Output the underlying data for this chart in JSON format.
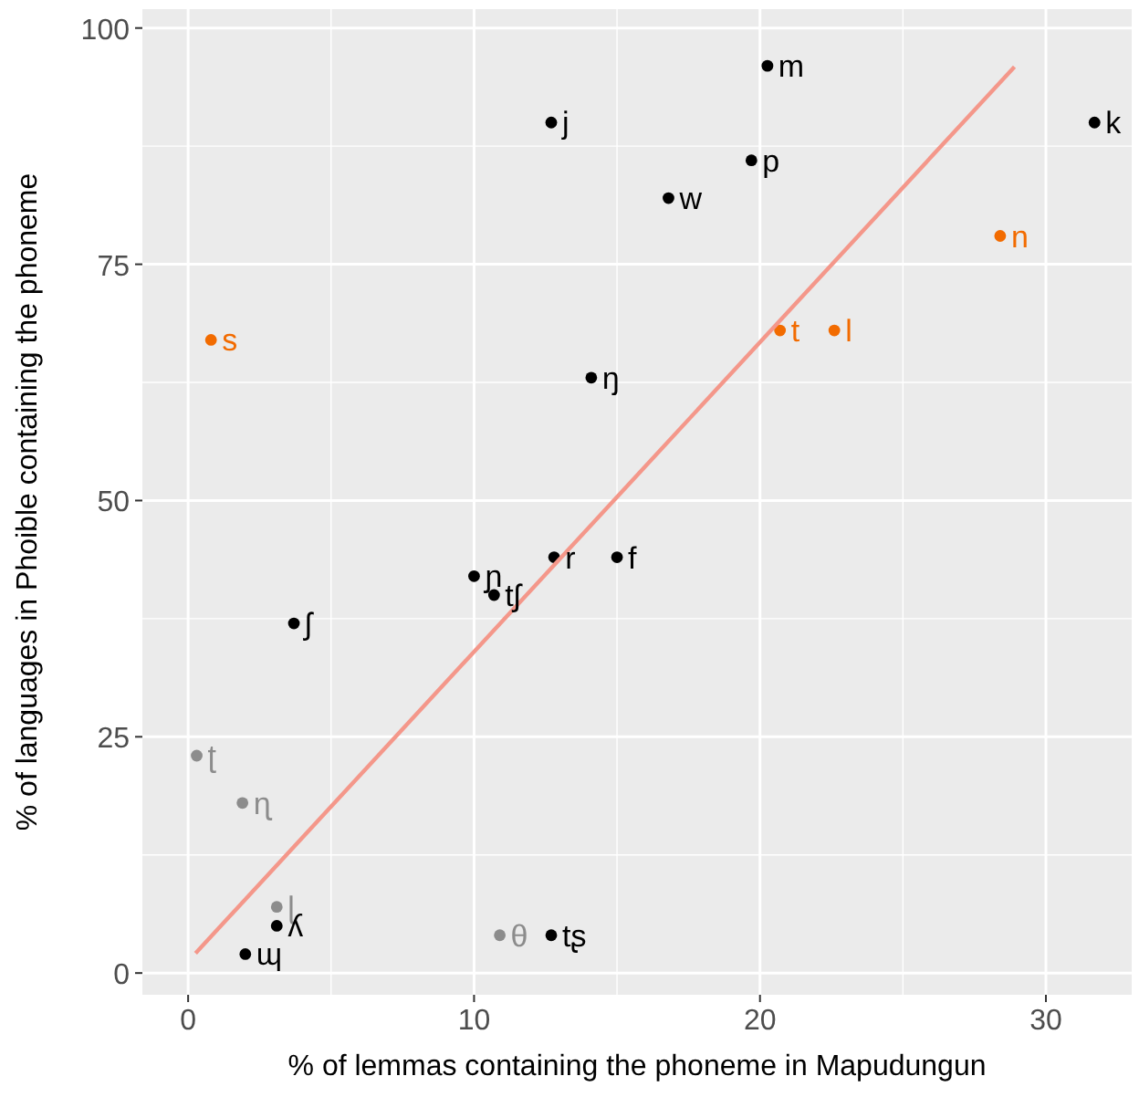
{
  "chart_data": {
    "type": "scatter",
    "xlabel": "% of lemmas containing the phoneme in Mapudungun",
    "ylabel": "% of languages in Phoible containing the phoneme",
    "xlim": [
      -1.6,
      33
    ],
    "ylim": [
      -2.3,
      102
    ],
    "xticks": [
      0,
      10,
      20,
      30
    ],
    "yticks": [
      0,
      25,
      50,
      75,
      100
    ],
    "grid": true,
    "marker": "circle",
    "series": [
      {
        "color": "#000000",
        "x": [
          20.26,
          12.7,
          31.7,
          19.7,
          16.8,
          14.1,
          10.0,
          12.8,
          15.0,
          10.7,
          3.7,
          3.1,
          2.0,
          12.7
        ],
        "values": [
          96,
          90,
          90,
          86,
          82,
          63,
          42,
          44,
          44,
          40,
          37,
          5,
          2,
          4
        ]
      },
      {
        "color": "#f26b00",
        "x": [
          28.4,
          0.8,
          20.7,
          22.6
        ],
        "values": [
          78,
          67,
          68,
          68
        ]
      },
      {
        "color": "#8c8c8c",
        "x": [
          0.3,
          1.9,
          3.1,
          10.9
        ],
        "values": [
          23,
          18,
          7,
          4
        ]
      },
      {
        "type": "line",
        "color": "#f4978a",
        "x": [
          0.26,
          28.9
        ],
        "values": [
          2.1,
          95.9
        ],
        "marker": "none"
      }
    ],
    "annotations": [
      {
        "text": "m",
        "x": 20.26,
        "y": 96
      },
      {
        "text": "j",
        "x": 12.7,
        "y": 90
      },
      {
        "text": "k",
        "x": 31.7,
        "y": 90
      },
      {
        "text": "p",
        "x": 19.7,
        "y": 86
      },
      {
        "text": "w",
        "x": 16.8,
        "y": 82
      },
      {
        "text": "n",
        "x": 28.4,
        "y": 78
      },
      {
        "text": "s",
        "x": 0.8,
        "y": 67
      },
      {
        "text": "t",
        "x": 20.7,
        "y": 68
      },
      {
        "text": "l",
        "x": 22.6,
        "y": 68
      },
      {
        "text": "ŋ",
        "x": 14.1,
        "y": 63
      },
      {
        "text": "ɲ",
        "x": 10.0,
        "y": 42
      },
      {
        "text": "r",
        "x": 12.8,
        "y": 44
      },
      {
        "text": "f",
        "x": 15.0,
        "y": 44
      },
      {
        "text": "tʃ",
        "x": 10.7,
        "y": 40
      },
      {
        "text": "ʃ",
        "x": 3.7,
        "y": 37
      },
      {
        "text": "ʈ",
        "x": 0.3,
        "y": 23
      },
      {
        "text": "ɳ",
        "x": 1.9,
        "y": 18
      },
      {
        "text": "ɭ",
        "x": 3.1,
        "y": 7
      },
      {
        "text": "ʎ",
        "x": 3.1,
        "y": 5
      },
      {
        "text": "ɰ",
        "x": 2.0,
        "y": 2
      },
      {
        "text": "θ",
        "x": 10.9,
        "y": 4
      },
      {
        "text": "tʂ",
        "x": 12.7,
        "y": 4
      }
    ]
  }
}
